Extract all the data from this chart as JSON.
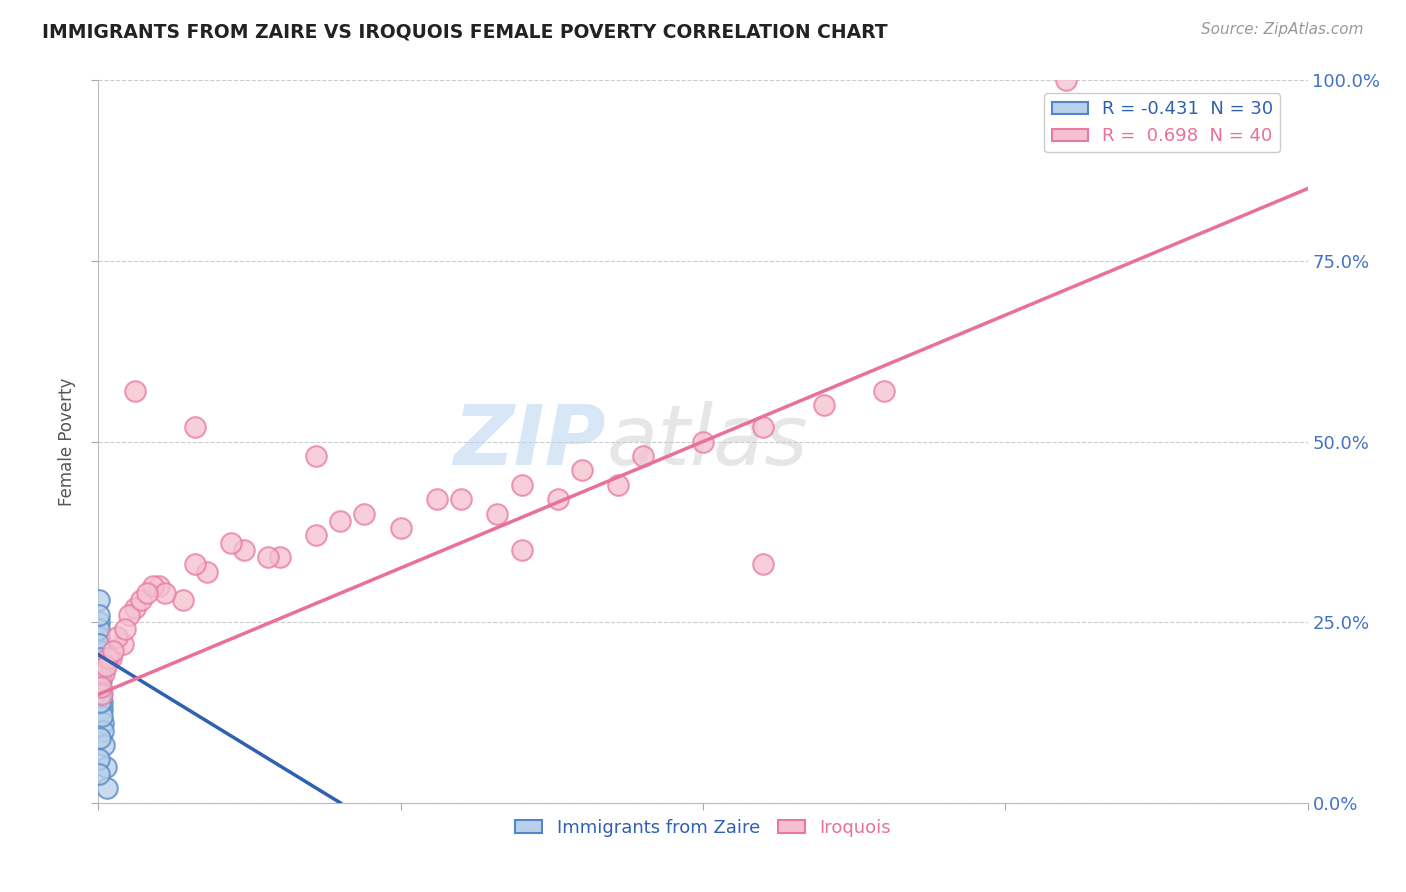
{
  "title": "IMMIGRANTS FROM ZAIRE VS IROQUOIS FEMALE POVERTY CORRELATION CHART",
  "source": "Source: ZipAtlas.com",
  "ylabel": "Female Poverty",
  "legend_blue_r": "-0.431",
  "legend_blue_n": "30",
  "legend_pink_r": "0.698",
  "legend_pink_n": "40",
  "legend_label_blue": "Immigrants from Zaire",
  "legend_label_pink": "Iroquois",
  "blue_fill": "#b8d0ea",
  "pink_fill": "#f5c0d0",
  "blue_edge": "#5585c5",
  "pink_edge": "#e87aa0",
  "blue_line_color": "#3060b0",
  "pink_line_color": "#e8709a",
  "watermark_zip": "ZIP",
  "watermark_atlas": "atlas",
  "blue_scatter_x": [
    0.1,
    0.15,
    0.2,
    0.25,
    0.3,
    0.35,
    0.4,
    0.5,
    0.6,
    0.7,
    0.05,
    0.08,
    0.12,
    0.18,
    0.22,
    0.28,
    0.32,
    0.06,
    0.1,
    0.14,
    0.02,
    0.04,
    0.07,
    0.11,
    0.16,
    0.2,
    0.09,
    0.13,
    0.05,
    0.03
  ],
  "blue_scatter_y": [
    20.0,
    22.0,
    18.0,
    15.0,
    13.0,
    11.0,
    10.0,
    8.0,
    5.0,
    2.0,
    25.0,
    23.0,
    21.0,
    19.0,
    17.0,
    14.0,
    12.0,
    24.0,
    16.0,
    9.0,
    28.0,
    26.0,
    22.0,
    20.0,
    18.0,
    15.0,
    19.0,
    14.0,
    6.0,
    4.0
  ],
  "pink_scatter_x": [
    0.5,
    1.0,
    2.0,
    3.0,
    5.0,
    7.0,
    9.0,
    12.0,
    15.0,
    18.0,
    22.0,
    25.0,
    30.0,
    35.0,
    40.0,
    45.0,
    50.0,
    55.0,
    60.0,
    65.0,
    0.3,
    0.8,
    1.5,
    2.5,
    3.5,
    4.5,
    5.5,
    8.0,
    11.0,
    14.0,
    20.0,
    28.0,
    33.0,
    38.0,
    43.0,
    0.2,
    0.6,
    1.2,
    2.2,
    4.0
  ],
  "pink_scatter_y": [
    18.0,
    20.0,
    22.0,
    27.0,
    30.0,
    28.0,
    32.0,
    35.0,
    34.0,
    37.0,
    40.0,
    38.0,
    42.0,
    44.0,
    46.0,
    48.0,
    50.0,
    52.0,
    55.0,
    57.0,
    15.0,
    20.0,
    23.0,
    26.0,
    28.0,
    30.0,
    29.0,
    33.0,
    36.0,
    34.0,
    39.0,
    42.0,
    40.0,
    42.0,
    44.0,
    16.0,
    19.0,
    21.0,
    24.0,
    29.0
  ],
  "pink_outlier_x": [
    3.0,
    8.0,
    18.0,
    35.0,
    55.0,
    80.0
  ],
  "pink_outlier_y": [
    57.0,
    52.0,
    48.0,
    35.0,
    33.0,
    100.0
  ],
  "xlim": [
    0,
    100
  ],
  "ylim": [
    0,
    100
  ],
  "background_color": "#ffffff",
  "grid_color": "#cccccc"
}
